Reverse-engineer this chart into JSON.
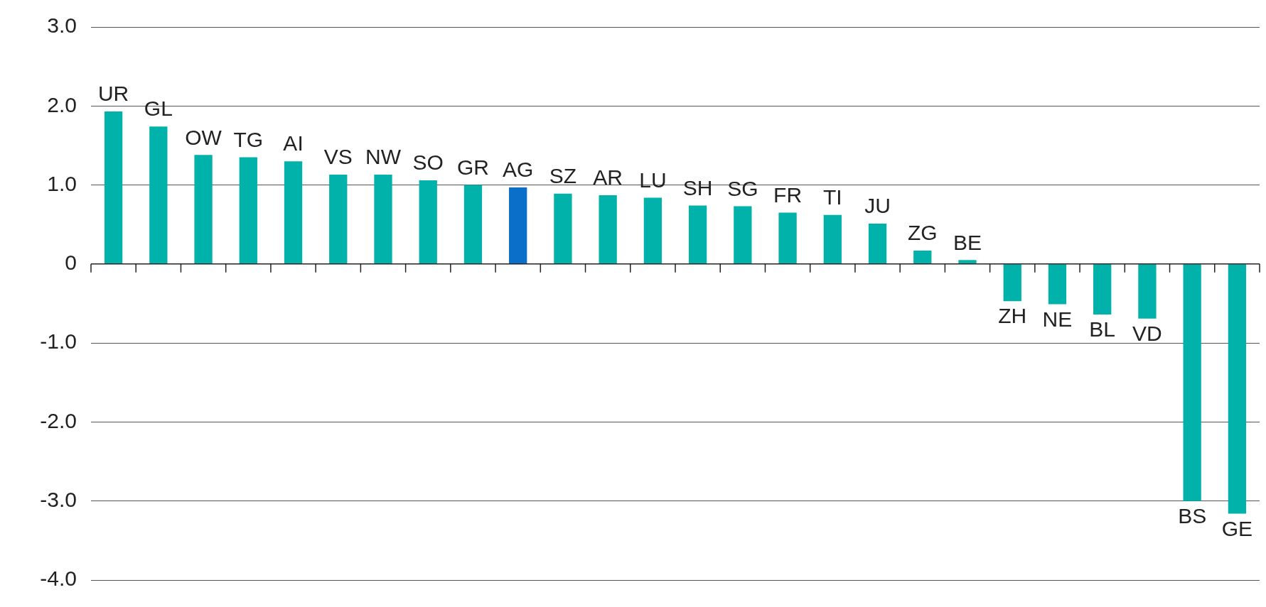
{
  "chart_data": {
    "type": "bar",
    "categories": [
      "UR",
      "GL",
      "OW",
      "TG",
      "AI",
      "VS",
      "NW",
      "SO",
      "GR",
      "AG",
      "SZ",
      "AR",
      "LU",
      "SH",
      "SG",
      "FR",
      "TI",
      "JU",
      "ZG",
      "BE",
      "ZH",
      "NE",
      "BL",
      "VD",
      "BS",
      "GE"
    ],
    "values": [
      1.93,
      1.74,
      1.38,
      1.35,
      1.3,
      1.13,
      1.13,
      1.06,
      1.0,
      0.97,
      0.89,
      0.87,
      0.84,
      0.74,
      0.73,
      0.65,
      0.62,
      0.51,
      0.17,
      0.05,
      -0.47,
      -0.51,
      -0.64,
      -0.69,
      -3.0,
      -3.16
    ],
    "colors": [
      "#00b2a9",
      "#00b2a9",
      "#00b2a9",
      "#00b2a9",
      "#00b2a9",
      "#00b2a9",
      "#00b2a9",
      "#00b2a9",
      "#00b2a9",
      "#0a6fc9",
      "#00b2a9",
      "#00b2a9",
      "#00b2a9",
      "#00b2a9",
      "#00b2a9",
      "#00b2a9",
      "#00b2a9",
      "#00b2a9",
      "#00b2a9",
      "#00b2a9",
      "#00b2a9",
      "#00b2a9",
      "#00b2a9",
      "#00b2a9",
      "#00b2a9",
      "#00b2a9"
    ],
    "ylim": [
      -4,
      3
    ],
    "yticks": [
      {
        "value": -4,
        "label": "-4.0"
      },
      {
        "value": -3,
        "label": "-3.0"
      },
      {
        "value": -2,
        "label": "-2.0"
      },
      {
        "value": -1,
        "label": "-1.0"
      },
      0,
      {
        "value": 1,
        "label": "1.0"
      },
      {
        "value": 2,
        "label": "2.0"
      },
      {
        "value": 3,
        "label": "3.0"
      }
    ],
    "grid": "y",
    "legend": false
  }
}
